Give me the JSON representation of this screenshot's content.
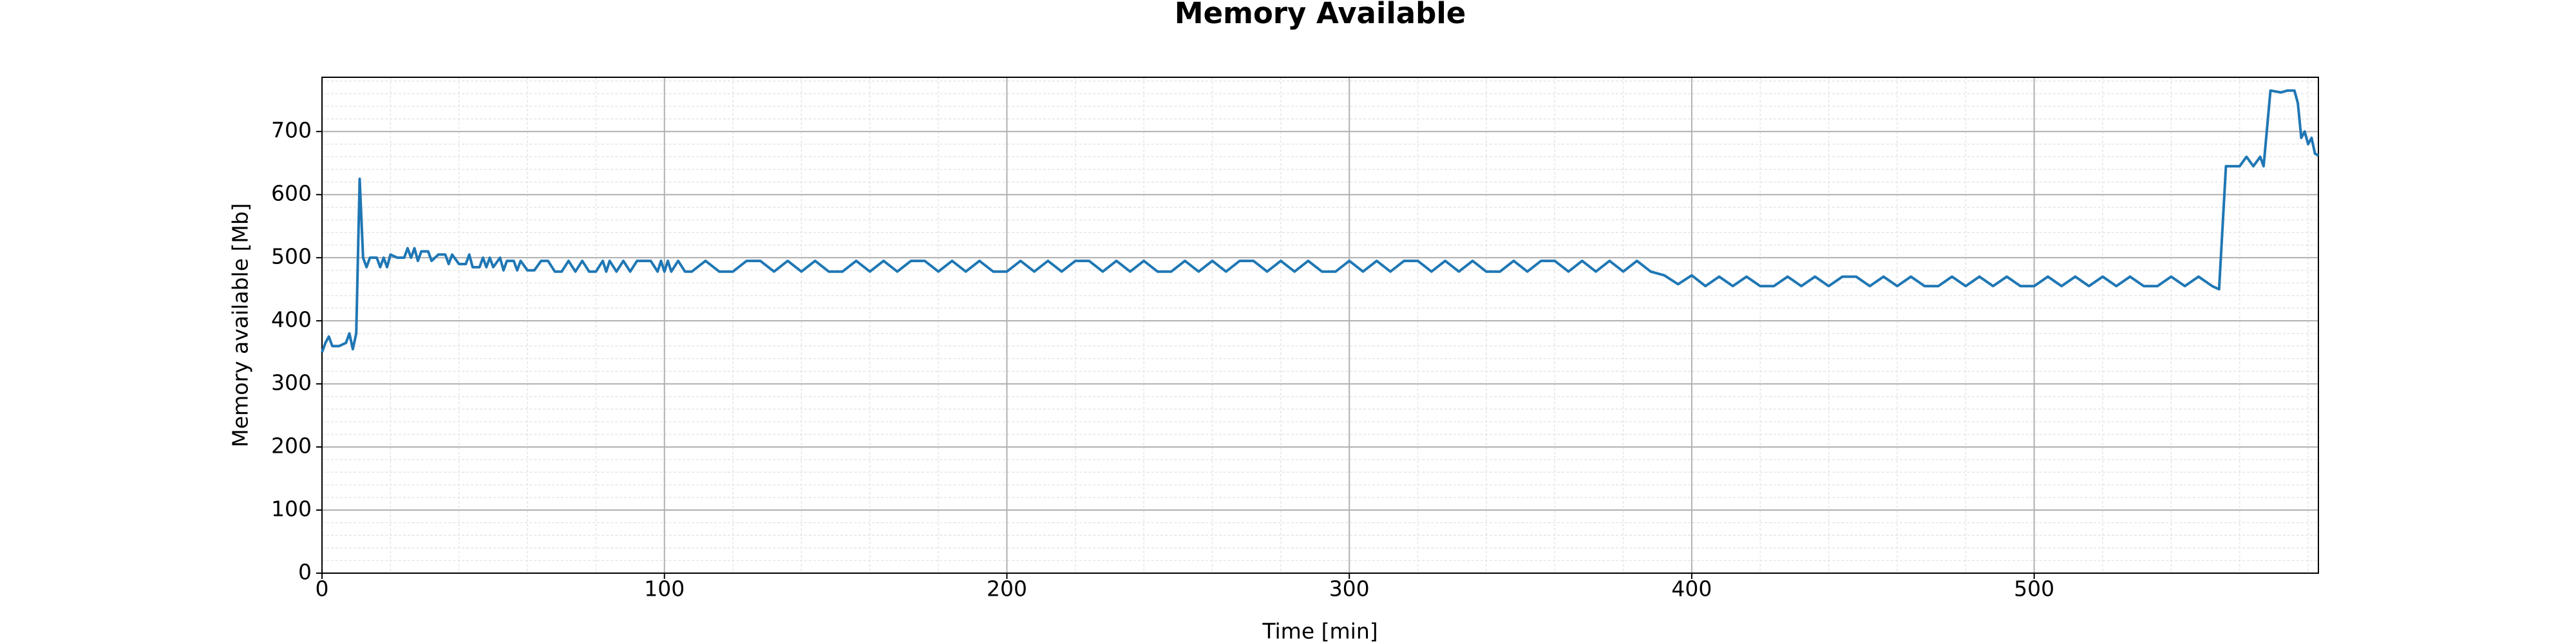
{
  "chart_data": {
    "type": "line",
    "title": "Memory Available",
    "x_label": "Time [min]",
    "y_label": "Memory available [Mb]",
    "x": [
      0,
      1,
      2,
      3,
      5,
      7,
      8,
      9,
      10,
      11,
      12,
      13,
      14,
      16,
      17,
      18,
      19,
      20,
      22,
      24,
      25,
      26,
      27,
      28,
      29,
      31,
      32,
      34,
      36,
      37,
      38,
      40,
      42,
      43,
      44,
      46,
      47,
      48,
      49,
      50,
      52,
      53,
      54,
      56,
      57,
      58,
      60,
      62,
      64,
      66,
      68,
      70,
      72,
      74,
      76,
      78,
      80,
      82,
      83,
      84,
      86,
      88,
      90,
      92,
      96,
      98,
      99,
      100,
      101,
      102,
      104,
      106,
      108,
      112,
      116,
      120,
      124,
      128,
      132,
      136,
      140,
      144,
      148,
      152,
      156,
      160,
      164,
      168,
      172,
      176,
      180,
      184,
      188,
      192,
      196,
      200,
      204,
      208,
      212,
      216,
      220,
      224,
      228,
      232,
      236,
      240,
      244,
      248,
      252,
      256,
      260,
      264,
      268,
      272,
      276,
      280,
      284,
      288,
      292,
      296,
      300,
      304,
      308,
      312,
      316,
      320,
      324,
      328,
      332,
      336,
      340,
      344,
      348,
      352,
      356,
      360,
      364,
      368,
      372,
      376,
      380,
      384,
      388,
      392,
      396,
      400,
      404,
      408,
      412,
      416,
      420,
      424,
      428,
      432,
      436,
      440,
      444,
      448,
      452,
      456,
      460,
      464,
      468,
      472,
      476,
      480,
      484,
      488,
      492,
      496,
      500,
      504,
      508,
      512,
      516,
      520,
      524,
      528,
      532,
      536,
      540,
      544,
      548,
      552,
      554,
      556,
      560,
      562,
      564,
      566,
      567,
      569,
      572,
      574,
      576,
      577,
      578,
      579,
      580,
      581,
      582,
      583
    ],
    "values": [
      350,
      365,
      375,
      360,
      360,
      365,
      380,
      355,
      380,
      625,
      500,
      485,
      500,
      500,
      485,
      500,
      485,
      505,
      500,
      500,
      515,
      500,
      515,
      495,
      510,
      510,
      495,
      505,
      505,
      490,
      505,
      490,
      490,
      505,
      485,
      485,
      500,
      485,
      500,
      485,
      500,
      480,
      495,
      495,
      480,
      495,
      480,
      480,
      495,
      495,
      478,
      478,
      495,
      478,
      495,
      478,
      478,
      495,
      478,
      495,
      478,
      495,
      478,
      495,
      495,
      478,
      495,
      478,
      495,
      478,
      495,
      478,
      478,
      495,
      478,
      478,
      495,
      495,
      478,
      495,
      478,
      495,
      478,
      478,
      495,
      478,
      495,
      478,
      495,
      495,
      478,
      495,
      478,
      495,
      478,
      478,
      495,
      478,
      495,
      478,
      495,
      495,
      478,
      495,
      478,
      495,
      478,
      478,
      495,
      478,
      495,
      478,
      495,
      495,
      478,
      495,
      478,
      495,
      478,
      478,
      495,
      478,
      495,
      478,
      495,
      495,
      478,
      495,
      478,
      495,
      478,
      478,
      495,
      478,
      495,
      495,
      478,
      495,
      478,
      495,
      478,
      495,
      478,
      472,
      458,
      472,
      455,
      470,
      455,
      470,
      455,
      455,
      470,
      455,
      470,
      455,
      470,
      470,
      455,
      470,
      455,
      470,
      455,
      455,
      470,
      455,
      470,
      455,
      470,
      455,
      455,
      470,
      455,
      470,
      455,
      470,
      455,
      470,
      455,
      455,
      470,
      455,
      470,
      455,
      450,
      645,
      645,
      660,
      645,
      660,
      645,
      765,
      762,
      765,
      765,
      745,
      690,
      700,
      680,
      690,
      665,
      662
    ],
    "color": "#1f77b4",
    "xlim": [
      0,
      583
    ],
    "ylim": [
      0,
      786
    ],
    "xticks": [
      0,
      100,
      200,
      300,
      400,
      500
    ],
    "yticks": [
      0,
      100,
      200,
      300,
      400,
      500,
      600,
      700
    ],
    "grid": true,
    "minor_grid": true
  }
}
